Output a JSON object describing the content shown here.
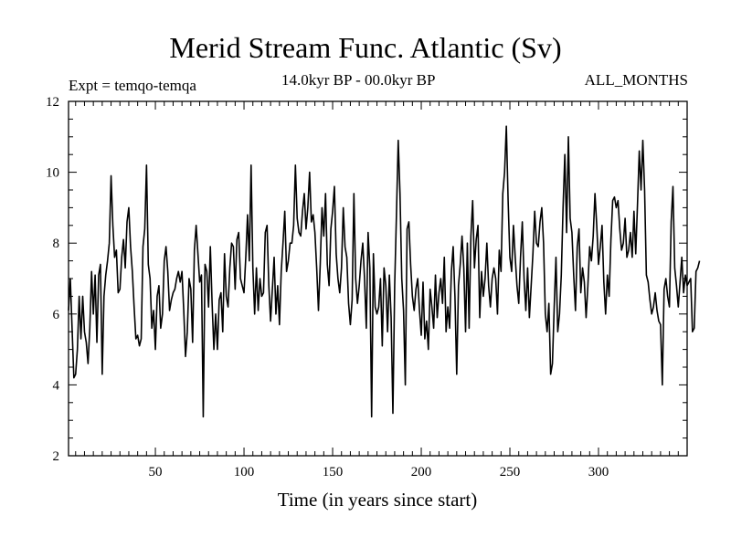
{
  "chart_data": {
    "type": "line",
    "title": "Merid Stream Func. Atlantic (Sv)",
    "experiment_label": "Expt = temqo-temqa",
    "period_label": "14.0kyr BP - 00.0kyr BP",
    "months_label": "ALL_MONTHS",
    "xlabel": "Time (in years since start)",
    "ylabel": "",
    "xlim": [
      1,
      350
    ],
    "ylim": [
      2,
      12
    ],
    "x_ticks": [
      50,
      100,
      150,
      200,
      250,
      300
    ],
    "y_ticks": [
      2,
      4,
      6,
      8,
      10,
      12
    ],
    "x_minor_step": 5,
    "y_minor_step": 0.5,
    "series": [
      {
        "name": "Merid Stream Func. Atlantic",
        "color": "#000000",
        "x_start": 1,
        "x_step": 1,
        "values": [
          6.1,
          7.0,
          5.6,
          4.2,
          4.3,
          5.0,
          6.5,
          5.3,
          6.5,
          5.5,
          5.2,
          4.6,
          5.6,
          7.2,
          6.0,
          7.1,
          5.2,
          7.1,
          7.4,
          4.3,
          6.5,
          7.1,
          7.5,
          8.0,
          9.9,
          8.5,
          7.6,
          7.8,
          6.6,
          6.7,
          7.6,
          8.1,
          7.3,
          8.6,
          9.0,
          7.9,
          7.2,
          6.2,
          5.3,
          5.4,
          5.1,
          5.3,
          7.9,
          8.4,
          10.2,
          7.4,
          7.0,
          5.6,
          6.1,
          5.0,
          6.5,
          6.8,
          5.6,
          6.0,
          7.5,
          7.9,
          7.2,
          6.1,
          6.4,
          6.6,
          6.7,
          7.0,
          7.2,
          6.9,
          7.2,
          6.1,
          4.8,
          5.5,
          7.0,
          6.7,
          5.2,
          7.8,
          8.5,
          7.7,
          6.9,
          7.1,
          3.1,
          7.4,
          7.2,
          6.2,
          7.9,
          6.3,
          5.0,
          6.0,
          5.0,
          6.4,
          6.6,
          5.5,
          7.7,
          6.5,
          6.2,
          7.3,
          8.0,
          7.9,
          6.7,
          8.1,
          8.3,
          7.0,
          6.8,
          6.6,
          7.6,
          8.8,
          7.5,
          10.2,
          7.3,
          6.0,
          7.3,
          6.1,
          7.0,
          6.5,
          6.6,
          8.3,
          8.5,
          6.8,
          5.8,
          6.7,
          7.6,
          6.0,
          6.8,
          5.7,
          7.2,
          8.0,
          8.9,
          7.2,
          7.5,
          8.0,
          8.0,
          8.5,
          10.2,
          8.7,
          8.3,
          8.2,
          8.9,
          9.4,
          8.4,
          9.0,
          10.0,
          8.6,
          8.8,
          8.3,
          7.3,
          6.1,
          7.4,
          9.0,
          8.2,
          9.4,
          7.4,
          6.8,
          8.4,
          8.9,
          9.6,
          7.7,
          7.0,
          6.6,
          7.3,
          9.0,
          7.9,
          7.6,
          6.3,
          5.7,
          6.4,
          9.4,
          7.0,
          6.3,
          6.8,
          7.5,
          8.0,
          7.0,
          5.6,
          8.3,
          7.3,
          3.1,
          7.7,
          6.2,
          6.0,
          6.2,
          7.0,
          5.1,
          7.3,
          6.8,
          5.5,
          7.1,
          5.9,
          3.2,
          6.8,
          8.8,
          10.9,
          9.4,
          7.0,
          6.1,
          4.0,
          8.4,
          8.6,
          7.4,
          6.5,
          6.1,
          6.7,
          7.0,
          6.1,
          5.4,
          6.9,
          5.3,
          5.8,
          5.0,
          6.7,
          6.2,
          5.6,
          7.1,
          5.9,
          6.6,
          7.0,
          6.3,
          7.6,
          5.5,
          6.2,
          5.6,
          7.2,
          7.9,
          6.5,
          4.3,
          6.8,
          7.4,
          8.2,
          7.3,
          5.5,
          8.0,
          5.6,
          8.2,
          9.2,
          7.3,
          8.1,
          8.5,
          5.9,
          7.2,
          6.5,
          7.0,
          8.0,
          6.8,
          6.2,
          7.0,
          7.3,
          7.0,
          6.0,
          7.8,
          7.2,
          9.4,
          10.0,
          11.3,
          9.2,
          7.6,
          7.2,
          8.5,
          7.6,
          6.8,
          6.3,
          7.6,
          8.6,
          7.0,
          6.1,
          7.3,
          5.9,
          6.8,
          7.7,
          8.9,
          8.0,
          7.9,
          8.6,
          9.0,
          8.0,
          6.0,
          5.5,
          6.3,
          4.3,
          4.6,
          6.2,
          7.6,
          5.5,
          6.0,
          7.1,
          9.0,
          10.5,
          8.3,
          11.0,
          8.7,
          8.3,
          7.1,
          6.1,
          7.9,
          8.4,
          6.6,
          7.3,
          6.9,
          5.9,
          6.8,
          7.9,
          7.5,
          8.2,
          9.4,
          8.5,
          7.4,
          7.9,
          8.5,
          6.9,
          6.0,
          7.1,
          6.5,
          8.1,
          9.2,
          9.3,
          9.0,
          9.2,
          8.4,
          7.8,
          8.0,
          8.7,
          7.6,
          7.8,
          8.3,
          7.6,
          8.9,
          7.7,
          9.1,
          10.6,
          9.5,
          10.9,
          9.5,
          7.1,
          6.9,
          6.4,
          6.0,
          6.2,
          6.6,
          6.1,
          5.8,
          5.7,
          4.0,
          6.7,
          7.0,
          6.5,
          6.2,
          8.6,
          9.6,
          7.3,
          6.8,
          6.2,
          6.9,
          7.6,
          6.6,
          7.1,
          6.8,
          6.9,
          7.0,
          5.5,
          5.6,
          7.2,
          7.3,
          7.5
        ]
      }
    ]
  }
}
